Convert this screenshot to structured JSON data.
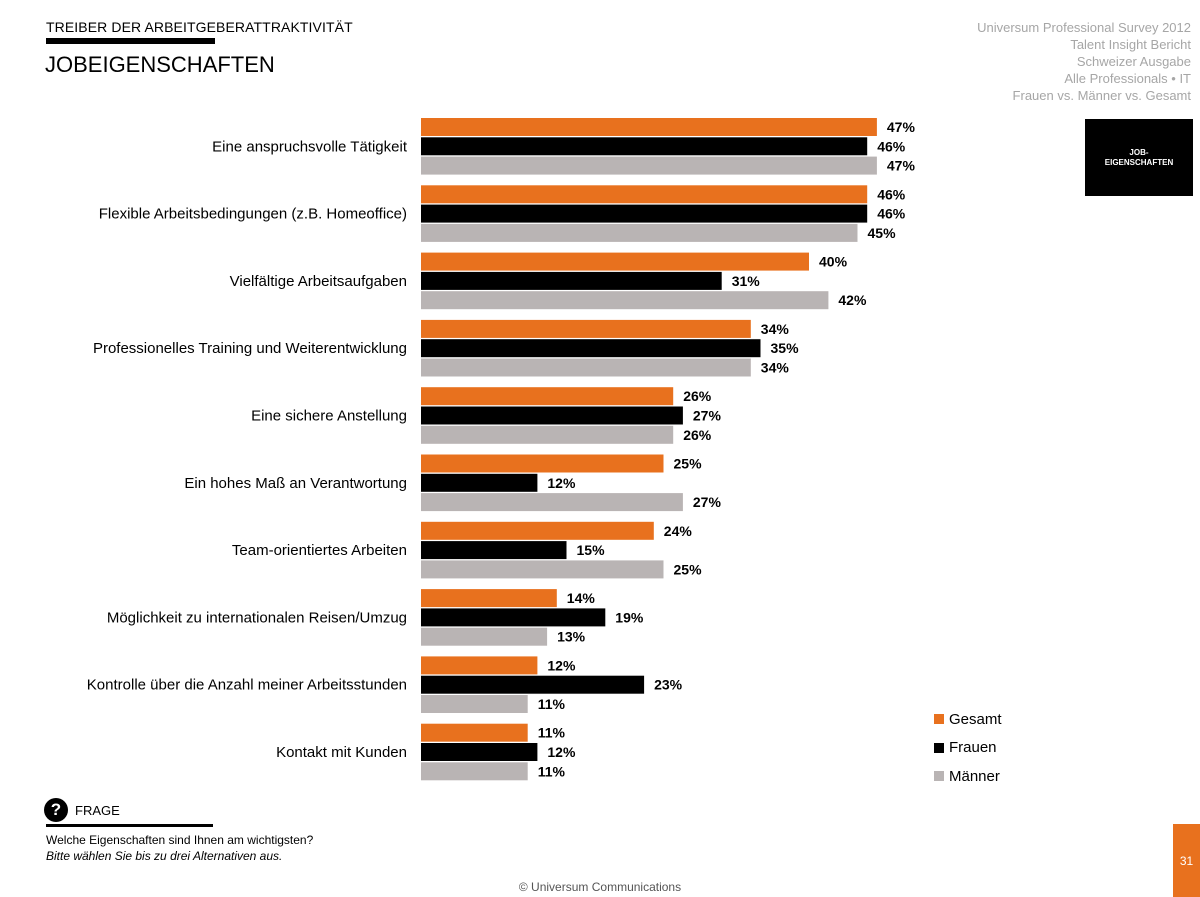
{
  "header": {
    "supertitle": "TREIBER DER ARBEITGEBERATTRAKTIVITÄT",
    "title": "JOBEIGENSCHAFTEN"
  },
  "meta": {
    "lines": [
      "Universum Professional Survey 2012",
      "Talent Insight Bericht",
      "Schweizer Ausgabe",
      "Alle Professionals • IT",
      "Frauen vs. Männer vs. Gesamt"
    ]
  },
  "section_box": {
    "line1": "JOB-",
    "line2": "EIGENSCHAFTEN"
  },
  "colors": {
    "gesamt": "#e8711e",
    "frauen": "#000000",
    "maenner": "#b9b4b4"
  },
  "chart_data": {
    "type": "bar",
    "orientation": "horizontal",
    "categories": [
      "Eine anspruchsvolle Tätigkeit",
      "Flexible Arbeitsbedingungen (z.B. Homeoffice)",
      "Vielfältige Arbeitsaufgaben",
      "Professionelles Training und Weiterentwicklung",
      "Eine sichere Anstellung",
      "Ein hohes Maß an Verantwortung",
      "Team-orientiertes Arbeiten",
      "Möglichkeit zu internationalen Reisen/Umzug",
      "Kontrolle über die Anzahl meiner Arbeitsstunden",
      "Kontakt mit Kunden"
    ],
    "series": [
      {
        "name": "Gesamt",
        "color": "#e8711e",
        "values": [
          47,
          46,
          40,
          34,
          26,
          25,
          24,
          14,
          12,
          11
        ]
      },
      {
        "name": "Frauen",
        "color": "#000000",
        "values": [
          46,
          46,
          31,
          35,
          27,
          12,
          15,
          19,
          23,
          12
        ]
      },
      {
        "name": "Männer",
        "color": "#b9b4b4",
        "values": [
          47,
          45,
          42,
          34,
          26,
          27,
          25,
          13,
          11,
          11
        ]
      }
    ],
    "value_suffix": "%",
    "xlim": [
      0,
      50
    ],
    "grid": false,
    "legend": "bottom-right"
  },
  "question": {
    "label": "FRAGE",
    "text": "Welche Eigenschaften sind Ihnen am wichtigsten?",
    "note": "Bitte wählen Sie bis zu drei Alternativen aus."
  },
  "footer": {
    "copyright": "© Universum Communications",
    "page": "31"
  }
}
